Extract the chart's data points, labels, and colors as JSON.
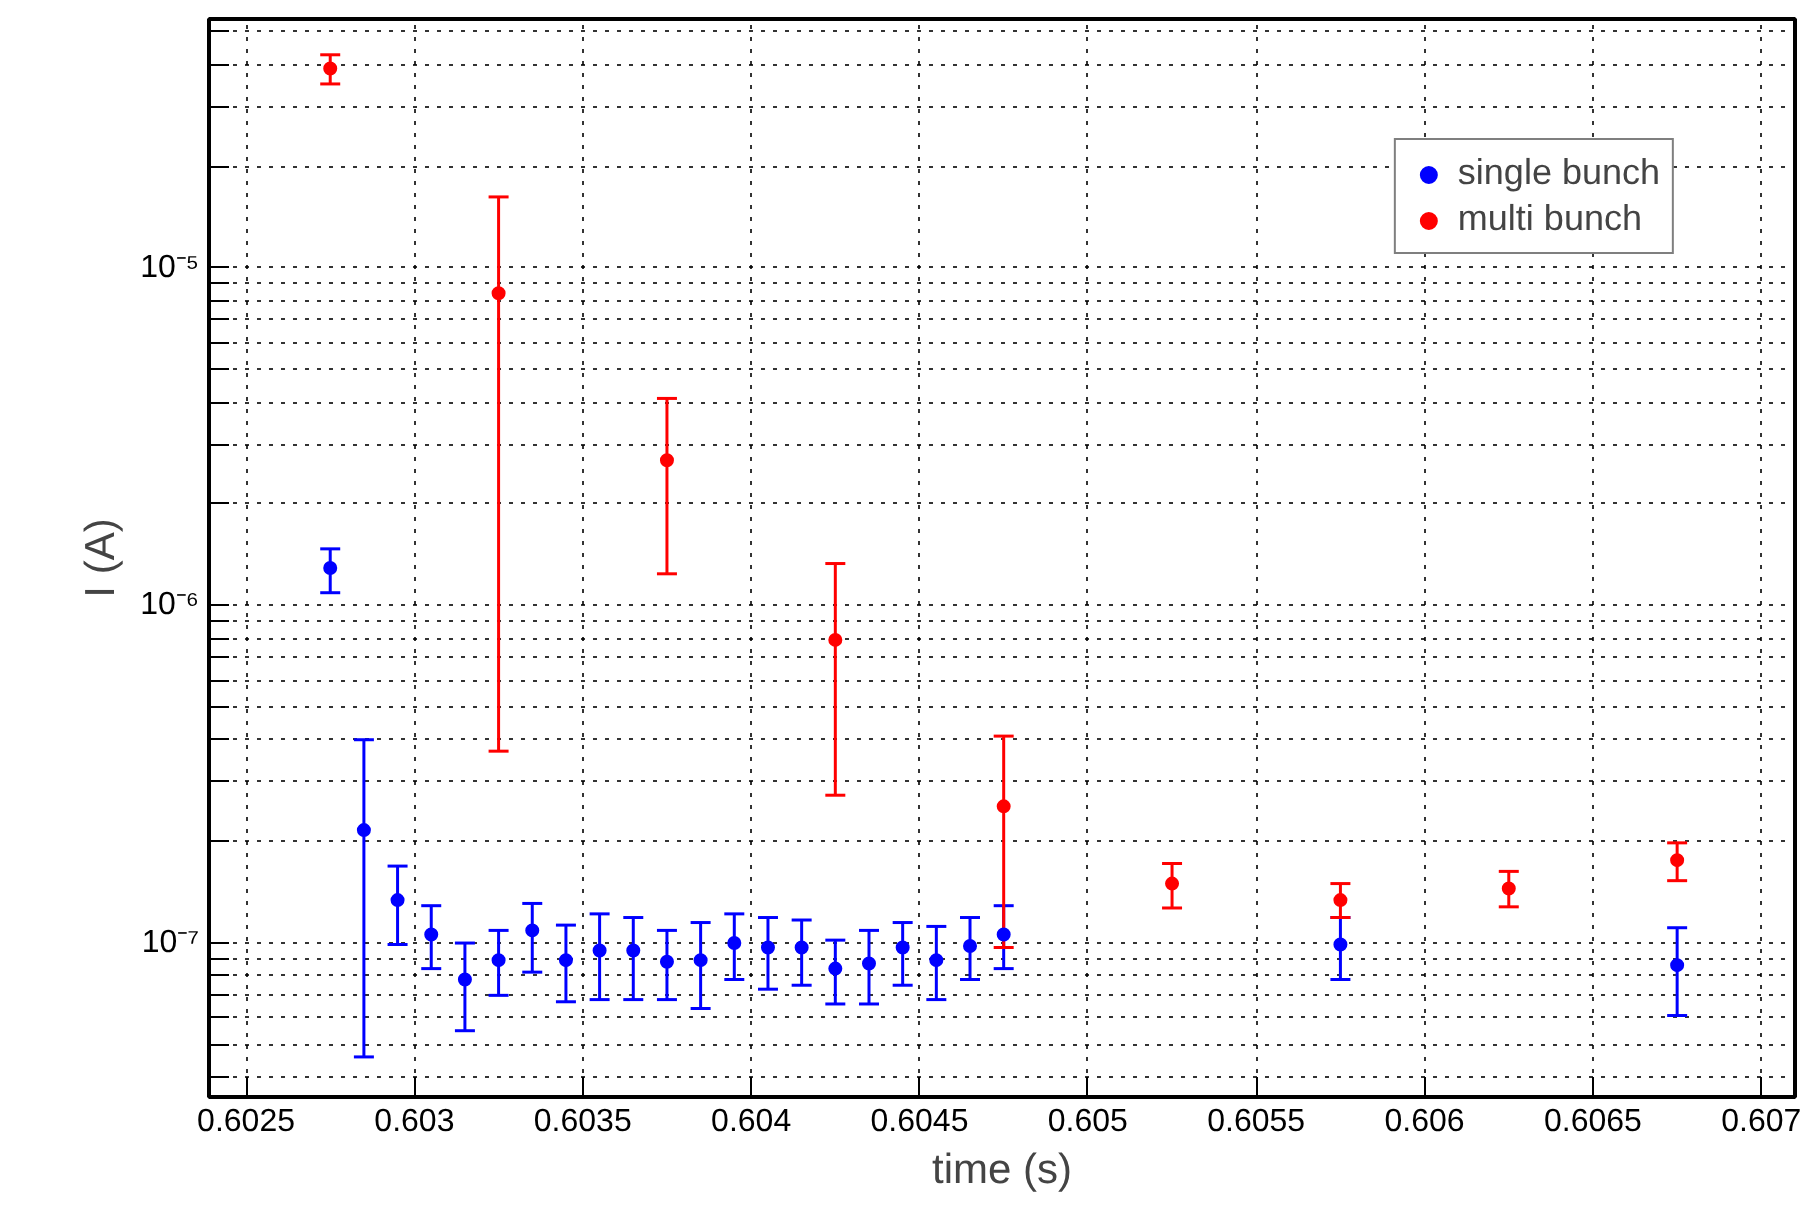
{
  "chart_data": {
    "type": "scatter",
    "xlabel": "time (s)",
    "ylabel": "I (A)",
    "log": "y",
    "grid": true,
    "legend": "top right",
    "marker": "circle",
    "xlim": [
      0.60239,
      0.6071
    ],
    "ylim": [
      3.5e-08,
      5.45e-05
    ],
    "xticks": [
      0.6025,
      0.603,
      0.6035,
      0.604,
      0.6045,
      0.605,
      0.6055,
      0.606,
      0.6065,
      0.607
    ],
    "yticks": [
      {
        "value": 4e-08,
        "label": null
      },
      {
        "value": 5e-08,
        "label": null
      },
      {
        "value": 6e-08,
        "label": null
      },
      {
        "value": 7e-08,
        "label": null
      },
      {
        "value": 8e-08,
        "label": null
      },
      {
        "value": 9e-08,
        "label": null
      },
      {
        "value": 1e-07,
        "label": "10⁻⁷"
      },
      {
        "value": 2e-07,
        "label": null
      },
      {
        "value": 3e-07,
        "label": null
      },
      {
        "value": 4e-07,
        "label": null
      },
      {
        "value": 5e-07,
        "label": null
      },
      {
        "value": 6e-07,
        "label": null
      },
      {
        "value": 7e-07,
        "label": null
      },
      {
        "value": 8e-07,
        "label": null
      },
      {
        "value": 9e-07,
        "label": null
      },
      {
        "value": 1e-06,
        "label": "10⁻⁶"
      },
      {
        "value": 2e-06,
        "label": null
      },
      {
        "value": 3e-06,
        "label": null
      },
      {
        "value": 4e-06,
        "label": null
      },
      {
        "value": 5e-06,
        "label": null
      },
      {
        "value": 6e-06,
        "label": null
      },
      {
        "value": 7e-06,
        "label": null
      },
      {
        "value": 8e-06,
        "label": null
      },
      {
        "value": 9e-06,
        "label": null
      },
      {
        "value": 1e-05,
        "label": "10⁻⁵"
      },
      {
        "value": 2e-05,
        "label": null
      },
      {
        "value": 3e-05,
        "label": null
      },
      {
        "value": 4e-05,
        "label": null
      },
      {
        "value": 5e-05,
        "label": null
      }
    ],
    "series": [
      {
        "name": "single bunch",
        "color": "#0000ff",
        "x": [
          0.60275,
          0.60285,
          0.60295,
          0.60305,
          0.60315,
          0.60325,
          0.60335,
          0.60345,
          0.60355,
          0.60365,
          0.60375,
          0.60385,
          0.60395,
          0.60405,
          0.60415,
          0.60425,
          0.60435,
          0.60445,
          0.60455,
          0.60465,
          0.60475,
          0.60575,
          0.60675
        ],
        "values": [
          1.29e-06,
          2.16e-07,
          1.34e-07,
          1.06e-07,
          7.8e-08,
          8.9e-08,
          1.09e-07,
          8.9e-08,
          9.5e-08,
          9.5e-08,
          8.8e-08,
          8.9e-08,
          1e-07,
          9.7e-08,
          9.7e-08,
          8.4e-08,
          8.7e-08,
          9.7e-08,
          8.9e-08,
          9.8e-08,
          1.06e-07,
          9.9e-08,
          8.6e-08
        ],
        "errors": [
          [
            1.09e-06,
            1.47e-06
          ],
          [
            4.6e-08,
            4e-07
          ],
          [
            9.9e-08,
            1.69e-07
          ],
          [
            8.4e-08,
            1.29e-07
          ],
          [
            5.5e-08,
            1e-07
          ],
          [
            7e-08,
            1.09e-07
          ],
          [
            8.2e-08,
            1.31e-07
          ],
          [
            6.7e-08,
            1.13e-07
          ],
          [
            6.8e-08,
            1.22e-07
          ],
          [
            6.8e-08,
            1.19e-07
          ],
          [
            6.8e-08,
            1.09e-07
          ],
          [
            6.4e-08,
            1.15e-07
          ],
          [
            7.8e-08,
            1.22e-07
          ],
          [
            7.3e-08,
            1.19e-07
          ],
          [
            7.5e-08,
            1.17e-07
          ],
          [
            6.6e-08,
            1.02e-07
          ],
          [
            6.6e-08,
            1.09e-07
          ],
          [
            7.5e-08,
            1.15e-07
          ],
          [
            6.8e-08,
            1.12e-07
          ],
          [
            7.8e-08,
            1.19e-07
          ],
          [
            8.4e-08,
            1.29e-07
          ],
          [
            7.8e-08,
            1.19e-07
          ],
          [
            6.1e-08,
            1.11e-07
          ]
        ]
      },
      {
        "name": "multi bunch",
        "color": "#ff0000",
        "x": [
          0.60275,
          0.60325,
          0.60375,
          0.60425,
          0.60475,
          0.60525,
          0.60575,
          0.60625,
          0.60675
        ],
        "values": [
          3.89e-05,
          8.4e-06,
          2.69e-06,
          7.9e-07,
          2.54e-07,
          1.5e-07,
          1.34e-07,
          1.45e-07,
          1.76e-07
        ],
        "errors": [
          [
            3.5e-05,
            4.27e-05
          ],
          [
            3.7e-07,
            1.62e-05
          ],
          [
            1.24e-06,
            4.1e-06
          ],
          [
            2.74e-07,
            1.33e-06
          ],
          [
            9.7e-08,
            4.1e-07
          ],
          [
            1.27e-07,
            1.72e-07
          ],
          [
            1.19e-07,
            1.5e-07
          ],
          [
            1.28e-07,
            1.63e-07
          ],
          [
            1.53e-07,
            1.98e-07
          ]
        ]
      }
    ]
  }
}
